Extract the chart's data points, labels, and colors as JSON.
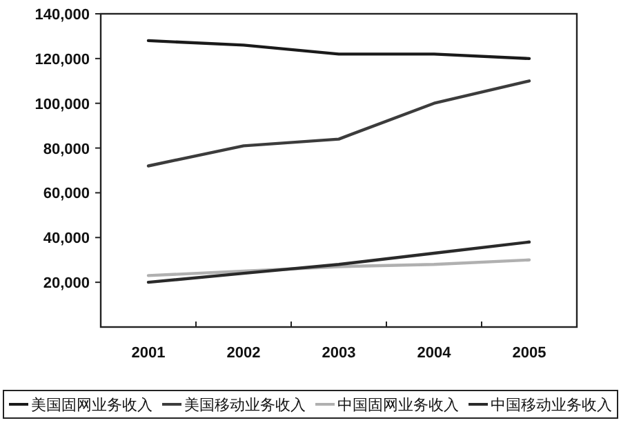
{
  "chart_data": {
    "type": "line",
    "categories": [
      "2001",
      "2002",
      "2003",
      "2004",
      "2005"
    ],
    "series": [
      {
        "name": "美国固网业务收入",
        "color": "#1a1a1a",
        "values": [
          128000,
          126000,
          122000,
          122000,
          120000
        ]
      },
      {
        "name": "美国移动业务收入",
        "color": "#3c3c3c",
        "values": [
          72000,
          81000,
          84000,
          100000,
          110000
        ]
      },
      {
        "name": "中国固网业务收入",
        "color": "#b0b0b0",
        "values": [
          23000,
          25000,
          27000,
          28000,
          30000
        ]
      },
      {
        "name": "中国移动业务收入",
        "color": "#2a2a2a",
        "values": [
          20000,
          24000,
          28000,
          33000,
          38000
        ]
      }
    ],
    "ylim": [
      0,
      140000
    ],
    "yticks": [
      {
        "value": 20000,
        "label": "20,000"
      },
      {
        "value": 40000,
        "label": "40,000"
      },
      {
        "value": 60000,
        "label": "60,000"
      },
      {
        "value": 80000,
        "label": "80,000"
      },
      {
        "value": 100000,
        "label": "100,000"
      },
      {
        "value": 120000,
        "label": "120,000"
      },
      {
        "value": 140000,
        "label": "140,000"
      }
    ],
    "legend": "bottom"
  }
}
